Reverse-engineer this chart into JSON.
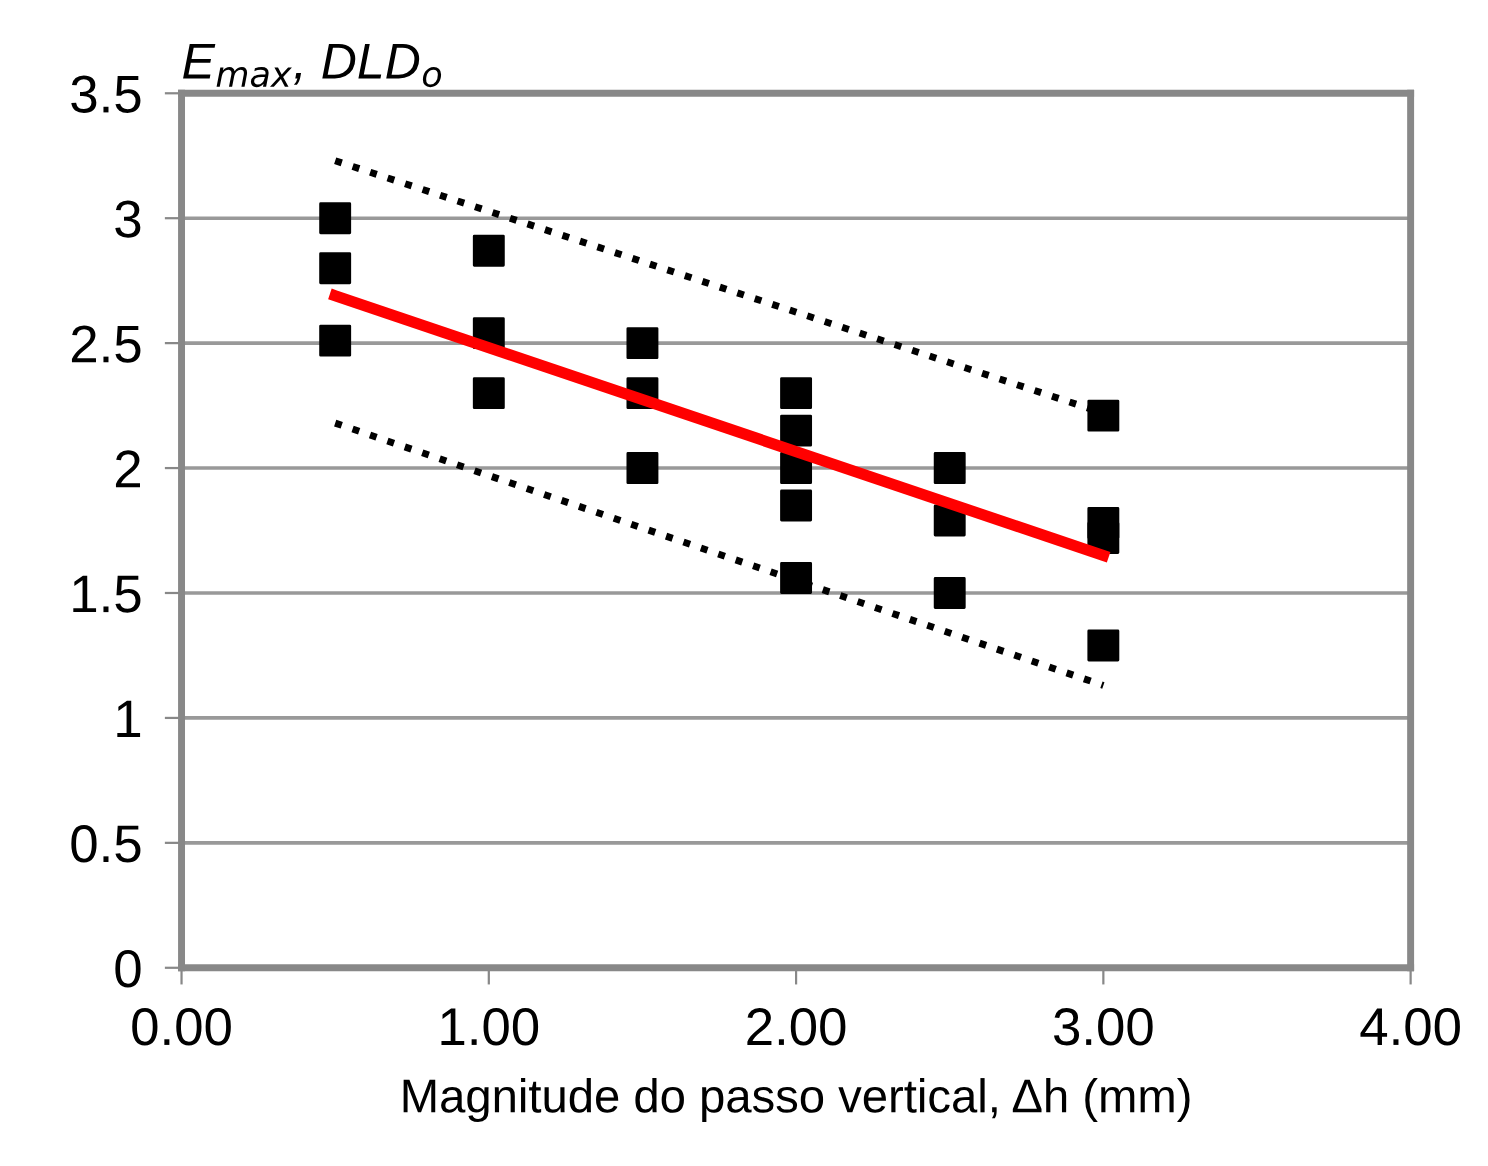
{
  "chart_data": {
    "type": "scatter",
    "ylabel": "E$_{max}$, DLD$_{o}$",
    "xlabel": "Magnitude do passo vertical, Δh (mm)",
    "xlim": [
      0,
      4
    ],
    "ylim": [
      0,
      3.5
    ],
    "xticks": [
      {
        "value": 0,
        "label": "0.00"
      },
      {
        "value": 1,
        "label": "1.00"
      },
      {
        "value": 2,
        "label": "2.00"
      },
      {
        "value": 3,
        "label": "3.00"
      },
      {
        "value": 4,
        "label": "4.00"
      }
    ],
    "yticks": [
      0,
      0.5,
      1,
      1.5,
      2,
      2.5,
      3,
      3.5
    ],
    "grid": "y",
    "legend": false,
    "series": [
      {
        "color": "#000000",
        "marker": "square",
        "x": [
          0.5,
          0.5,
          0.5,
          1,
          1,
          1,
          1.5,
          1.5,
          1.5,
          2,
          2,
          2,
          2,
          2,
          2.5,
          2.5,
          2.5,
          3,
          3,
          3,
          3
        ],
        "values": [
          3.0,
          2.8,
          2.51,
          2.87,
          2.54,
          2.3,
          2.5,
          2.3,
          2.0,
          2.3,
          2.15,
          2.0,
          1.85,
          1.56,
          2.0,
          1.79,
          1.5,
          2.21,
          1.78,
          1.72,
          1.29
        ]
      },
      {
        "type": "line",
        "color": "#ff0000",
        "line_style": "solid",
        "x": [
          0.5,
          3
        ],
        "values": [
          2.69,
          1.65
        ]
      },
      {
        "type": "line",
        "color": "#000000",
        "line_style": "dotted",
        "x": [
          0.5,
          3
        ],
        "values": [
          3.23,
          2.22
        ]
      },
      {
        "type": "line",
        "color": "#000000",
        "line_style": "dotted",
        "x": [
          0.5,
          3
        ],
        "values": [
          2.18,
          1.13
        ]
      }
    ]
  }
}
